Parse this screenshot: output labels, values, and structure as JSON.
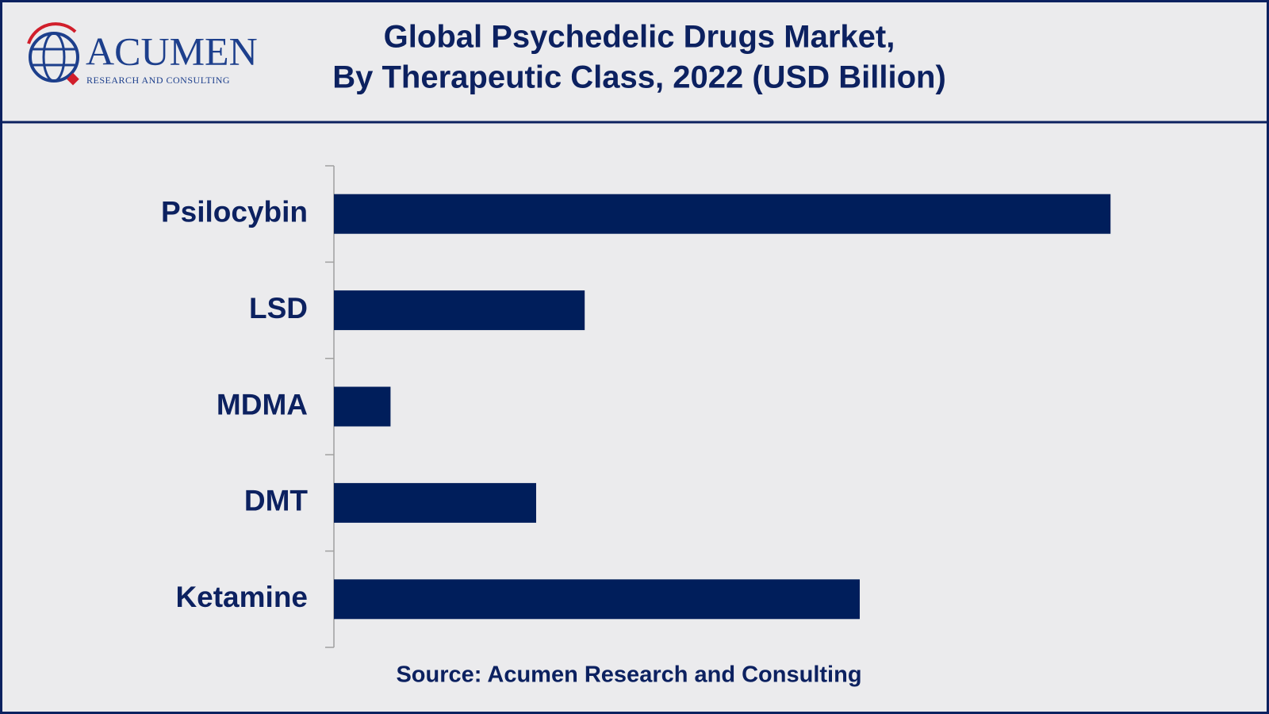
{
  "logo": {
    "name": "ACUMEN",
    "tagline": "RESEARCH AND CONSULTING"
  },
  "chart_data": {
    "type": "hbar",
    "title": [
      "Global Psychedelic Drugs Market,",
      "By Therapeutic Class, 2022 (USD Billion)"
    ],
    "categories": [
      "Psilocybin",
      "LSD",
      "MDMA",
      "DMT",
      "Ketamine"
    ],
    "values": [
      0.96,
      0.31,
      0.07,
      0.25,
      0.65
    ],
    "xlim": [
      0,
      1
    ],
    "color": "#001e5b",
    "source": "Source: Acumen Research and Consulting"
  }
}
